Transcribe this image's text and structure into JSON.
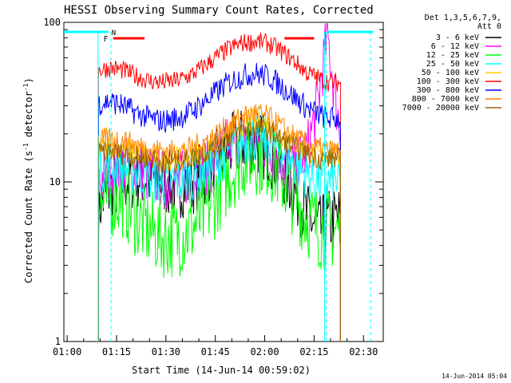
{
  "chart_data": {
    "type": "line",
    "title": "HESSI Observing Summary Count Rates, Corrected",
    "xlabel": "Start Time (14-Jun-14 00:59:02)",
    "ylabel_main": "Corrected Count Rate (s",
    "ylabel_sup1": "-1",
    "ylabel_mid": " detector",
    "ylabel_sup2": "-1",
    "ylabel_end": ")",
    "y_scale": "log",
    "ylim": [
      1,
      100
    ],
    "xlim_minutes": [
      0,
      97
    ],
    "x_ticks": [
      {
        "minute": 1,
        "label": "01:00"
      },
      {
        "minute": 16,
        "label": "01:15"
      },
      {
        "minute": 31,
        "label": "01:30"
      },
      {
        "minute": 46,
        "label": "01:45"
      },
      {
        "minute": 61,
        "label": "02:00"
      },
      {
        "minute": 76,
        "label": "02:15"
      },
      {
        "minute": 91,
        "label": "02:30"
      }
    ],
    "y_ticks": [
      {
        "value": 1,
        "label": "1"
      },
      {
        "value": 10,
        "label": "10"
      },
      {
        "value": 100,
        "label": "100"
      }
    ],
    "legend_header": [
      "Det 1,3,5,6,7,9,",
      "Att 0"
    ],
    "legend_placement": "right",
    "data_start_minute": 10.5,
    "data_end_minute": 84,
    "series": [
      {
        "name": "3 - 6 keV",
        "color": "#000000",
        "x": [
          10.5,
          14,
          18,
          22,
          26,
          30,
          34,
          38,
          42,
          46,
          50,
          54,
          58,
          62,
          66,
          70,
          74,
          78,
          80,
          84
        ],
        "y": [
          7,
          9,
          10,
          11,
          10.5,
          10,
          9.5,
          10,
          11,
          13,
          16,
          18,
          18,
          16,
          12,
          9,
          6,
          5,
          5.5,
          6
        ]
      },
      {
        "name": "6 - 12 keV",
        "color": "#ff00ff",
        "x": [
          10.5,
          14,
          18,
          22,
          26,
          30,
          34,
          38,
          42,
          46,
          50,
          54,
          58,
          62,
          66,
          70,
          74,
          77,
          79,
          80,
          82,
          84
        ],
        "y": [
          10,
          12,
          13,
          12,
          11,
          10.5,
          10,
          11,
          12,
          14,
          17,
          19,
          19,
          17,
          14,
          12,
          16,
          30,
          60,
          85,
          40,
          20
        ]
      },
      {
        "name": "12 - 25 keV",
        "color": "#00ff00",
        "x": [
          10.5,
          14,
          18,
          22,
          26,
          30,
          34,
          38,
          42,
          46,
          50,
          54,
          58,
          62,
          66,
          70,
          74,
          78,
          81,
          84
        ],
        "y": [
          7,
          8,
          8,
          6,
          5,
          4.5,
          4.5,
          5,
          6,
          8,
          11,
          14,
          15,
          14,
          11,
          8,
          6,
          5,
          5,
          5
        ]
      },
      {
        "name": "25 - 50 keV",
        "color": "#00ffff",
        "x": [
          10.5,
          14,
          18,
          22,
          26,
          30,
          34,
          38,
          42,
          46,
          50,
          54,
          58,
          62,
          66,
          70,
          74,
          78,
          81,
          84
        ],
        "y": [
          12,
          13,
          12.5,
          11.5,
          10.5,
          10,
          10,
          10.5,
          11.5,
          13,
          15.5,
          18,
          19,
          18,
          15.5,
          13,
          11,
          10,
          10,
          10
        ]
      },
      {
        "name": "50 - 100 keV",
        "color": "#ffcc00",
        "x": [
          10.5,
          14,
          18,
          22,
          26,
          30,
          34,
          38,
          42,
          46,
          50,
          54,
          58,
          62,
          66,
          70,
          74,
          78,
          81,
          84
        ],
        "y": [
          16,
          17,
          16.5,
          15.5,
          14.5,
          14,
          14,
          14.5,
          15.5,
          17,
          20,
          23,
          24,
          23,
          20,
          17.5,
          15.5,
          14.5,
          14.5,
          14.5
        ]
      },
      {
        "name": "100 - 300 keV",
        "color": "#ff0000",
        "x": [
          10.5,
          14,
          18,
          22,
          26,
          30,
          34,
          38,
          42,
          46,
          50,
          54,
          58,
          62,
          66,
          70,
          74,
          78,
          81,
          84
        ],
        "y": [
          50,
          52,
          50,
          46,
          43,
          42,
          43,
          46,
          52,
          60,
          68,
          74,
          76,
          74,
          66,
          57,
          48,
          44,
          42,
          42
        ]
      },
      {
        "name": "300 - 800 keV",
        "color": "#0000ff",
        "x": [
          10.5,
          14,
          18,
          22,
          26,
          30,
          34,
          38,
          42,
          46,
          50,
          54,
          58,
          62,
          66,
          70,
          74,
          78,
          81,
          84
        ],
        "y": [
          31,
          32,
          30,
          27,
          25,
          24,
          25,
          27,
          31,
          36,
          42,
          46,
          48,
          46,
          40,
          34,
          29,
          26,
          25,
          25
        ]
      },
      {
        "name": "800 - 7000 keV",
        "color": "#ff8800",
        "x": [
          10.5,
          14,
          18,
          22,
          26,
          30,
          34,
          38,
          42,
          46,
          50,
          54,
          58,
          62,
          66,
          70,
          74,
          78,
          81,
          84
        ],
        "y": [
          18,
          18.5,
          18,
          17,
          16,
          15.5,
          15.5,
          16,
          17.5,
          19.5,
          22.5,
          25.5,
          27,
          25.5,
          22,
          19,
          17,
          16,
          15.5,
          15.5
        ]
      },
      {
        "name": "7000 - 20000 keV",
        "color": "#996600",
        "x": [
          10.5,
          14,
          18,
          22,
          26,
          30,
          34,
          38,
          42,
          46,
          50,
          54,
          58,
          62,
          66,
          70,
          74,
          78,
          81,
          84
        ],
        "y": [
          15,
          15.5,
          15,
          14.5,
          14,
          13.5,
          13.5,
          14,
          15,
          16.5,
          19,
          21,
          22,
          21,
          18.5,
          16.5,
          15,
          14,
          14,
          14
        ]
      }
    ],
    "annotations": {
      "night_bars": [
        {
          "x1": 0,
          "x2": 13.5
        },
        {
          "x1": 80,
          "x2": 94
        }
      ],
      "night_color": "#00ffff",
      "night_label": "N",
      "night_label_minute": 14.5,
      "flare_bars": [
        {
          "x1": 15,
          "x2": 24.5
        },
        {
          "x1": 67,
          "x2": 76
        }
      ],
      "flare_color": "#ff0000",
      "flare_label": "F",
      "flare_label_minute": 12,
      "dashed_lines_minutes": [
        14.3,
        79.7,
        93.2
      ],
      "solid_lines_minutes": [
        10.4,
        79.2
      ]
    }
  },
  "timestamp": "14-Jun-2014 05:04"
}
